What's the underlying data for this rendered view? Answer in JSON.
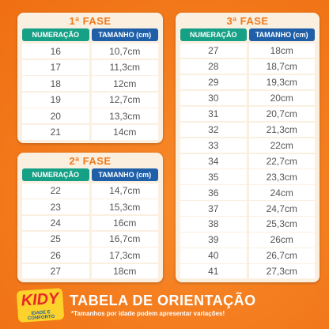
{
  "tables": [
    {
      "title": "1ª FASE",
      "headers": [
        "NUMERAÇÃO",
        "TAMANHO (cm)"
      ],
      "rows": [
        [
          "16",
          "10,7cm"
        ],
        [
          "17",
          "11,3cm"
        ],
        [
          "18",
          "12cm"
        ],
        [
          "19",
          "12,7cm"
        ],
        [
          "20",
          "13,3cm"
        ],
        [
          "21",
          "14cm"
        ]
      ]
    },
    {
      "title": "2ª FASE",
      "headers": [
        "NUMERAÇÃO",
        "TAMANHO (cm)"
      ],
      "rows": [
        [
          "22",
          "14,7cm"
        ],
        [
          "23",
          "15,3cm"
        ],
        [
          "24",
          "16cm"
        ],
        [
          "25",
          "16,7cm"
        ],
        [
          "26",
          "17,3cm"
        ],
        [
          "27",
          "18cm"
        ]
      ]
    },
    {
      "title": "3ª FASE",
      "headers": [
        "NUMERAÇÃO",
        "TAMANHO (cm)"
      ],
      "rows": [
        [
          "27",
          "18cm"
        ],
        [
          "28",
          "18,7cm"
        ],
        [
          "29",
          "19,3cm"
        ],
        [
          "30",
          "20cm"
        ],
        [
          "31",
          "20,7cm"
        ],
        [
          "32",
          "21,3cm"
        ],
        [
          "33",
          "22cm"
        ],
        [
          "34",
          "22,7cm"
        ],
        [
          "35",
          "23,3cm"
        ],
        [
          "36",
          "24cm"
        ],
        [
          "37",
          "24,7cm"
        ],
        [
          "38",
          "25,3cm"
        ],
        [
          "39",
          "26cm"
        ],
        [
          "40",
          "26,7cm"
        ],
        [
          "41",
          "27,3cm"
        ]
      ]
    }
  ],
  "footer": {
    "logo": "KIDY",
    "tagline": "IDADE E CONFORTO",
    "title": "TABELA DE ORIENTAÇÃO",
    "note": "*Tamanhos por idade podem apresentar variações!"
  }
}
